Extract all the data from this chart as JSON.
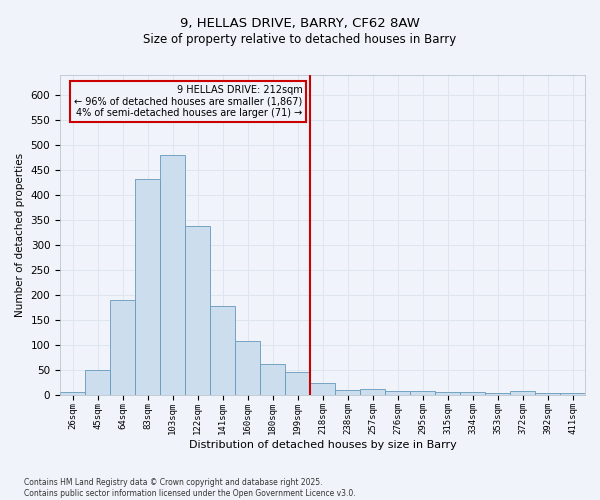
{
  "title_line1": "9, HELLAS DRIVE, BARRY, CF62 8AW",
  "title_line2": "Size of property relative to detached houses in Barry",
  "xlabel": "Distribution of detached houses by size in Barry",
  "ylabel": "Number of detached properties",
  "categories": [
    "26sqm",
    "45sqm",
    "64sqm",
    "83sqm",
    "103sqm",
    "122sqm",
    "141sqm",
    "160sqm",
    "180sqm",
    "199sqm",
    "218sqm",
    "238sqm",
    "257sqm",
    "276sqm",
    "295sqm",
    "315sqm",
    "334sqm",
    "353sqm",
    "372sqm",
    "392sqm",
    "411sqm"
  ],
  "values": [
    5,
    50,
    190,
    432,
    480,
    338,
    178,
    107,
    62,
    45,
    23,
    10,
    11,
    8,
    8,
    5,
    5,
    3,
    7,
    3,
    3
  ],
  "bar_color": "#ccdded",
  "bar_edge_color": "#6699bb",
  "grid_color": "#dde5ef",
  "vline_color": "#cc0000",
  "annotation_text": "9 HELLAS DRIVE: 212sqm\n← 96% of detached houses are smaller (1,867)\n4% of semi-detached houses are larger (71) →",
  "annotation_box_color": "#cc0000",
  "ylim": [
    0,
    640
  ],
  "yticks": [
    0,
    50,
    100,
    150,
    200,
    250,
    300,
    350,
    400,
    450,
    500,
    550,
    600
  ],
  "footer": "Contains HM Land Registry data © Crown copyright and database right 2025.\nContains public sector information licensed under the Open Government Licence v3.0.",
  "bg_color": "#f0f4fa"
}
